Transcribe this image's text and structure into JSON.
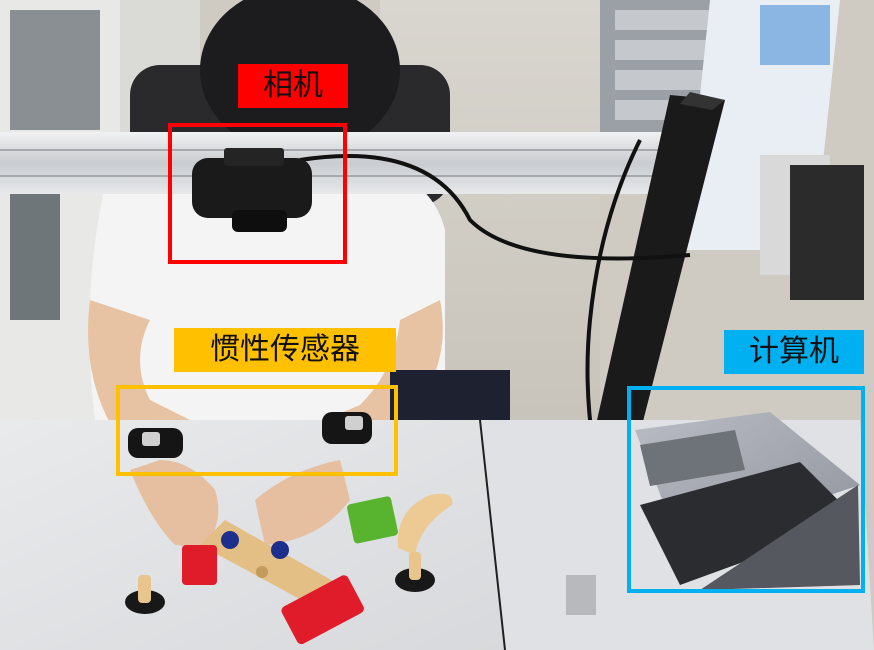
{
  "labels": {
    "camera": "相机",
    "imu": "惯性传感器",
    "computer": "计算机"
  },
  "colors": {
    "camera": "#ff0000",
    "imu": "#ffc000",
    "computer": "#00b0f0"
  },
  "icons": [
    "camera-icon",
    "wristband-sensor-icon",
    "laptop-icon"
  ]
}
